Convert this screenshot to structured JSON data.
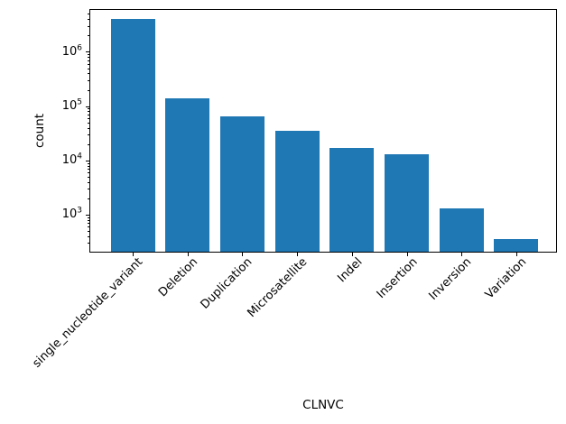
{
  "figure": {
    "background_color": "#ffffff",
    "spine_color": "#000000",
    "text_color": "#000000"
  },
  "chart_data": {
    "type": "bar",
    "title": "",
    "xlabel": "CLNVC",
    "ylabel": "count",
    "categories": [
      "single_nucleotide_variant",
      "Deletion",
      "Duplication",
      "Microsatellite",
      "Indel",
      "Insertion",
      "Inversion",
      "Variation"
    ],
    "values": [
      4000000,
      140000,
      65000,
      35000,
      17000,
      13000,
      1300,
      360
    ],
    "bar_color": "#1f77b4",
    "yscale": "log",
    "ylim": [
      208,
      5920000
    ],
    "ytick_exponents": [
      3,
      4,
      5,
      6
    ],
    "x_tick_rotation_deg": 45,
    "grid": false,
    "legend": null
  }
}
